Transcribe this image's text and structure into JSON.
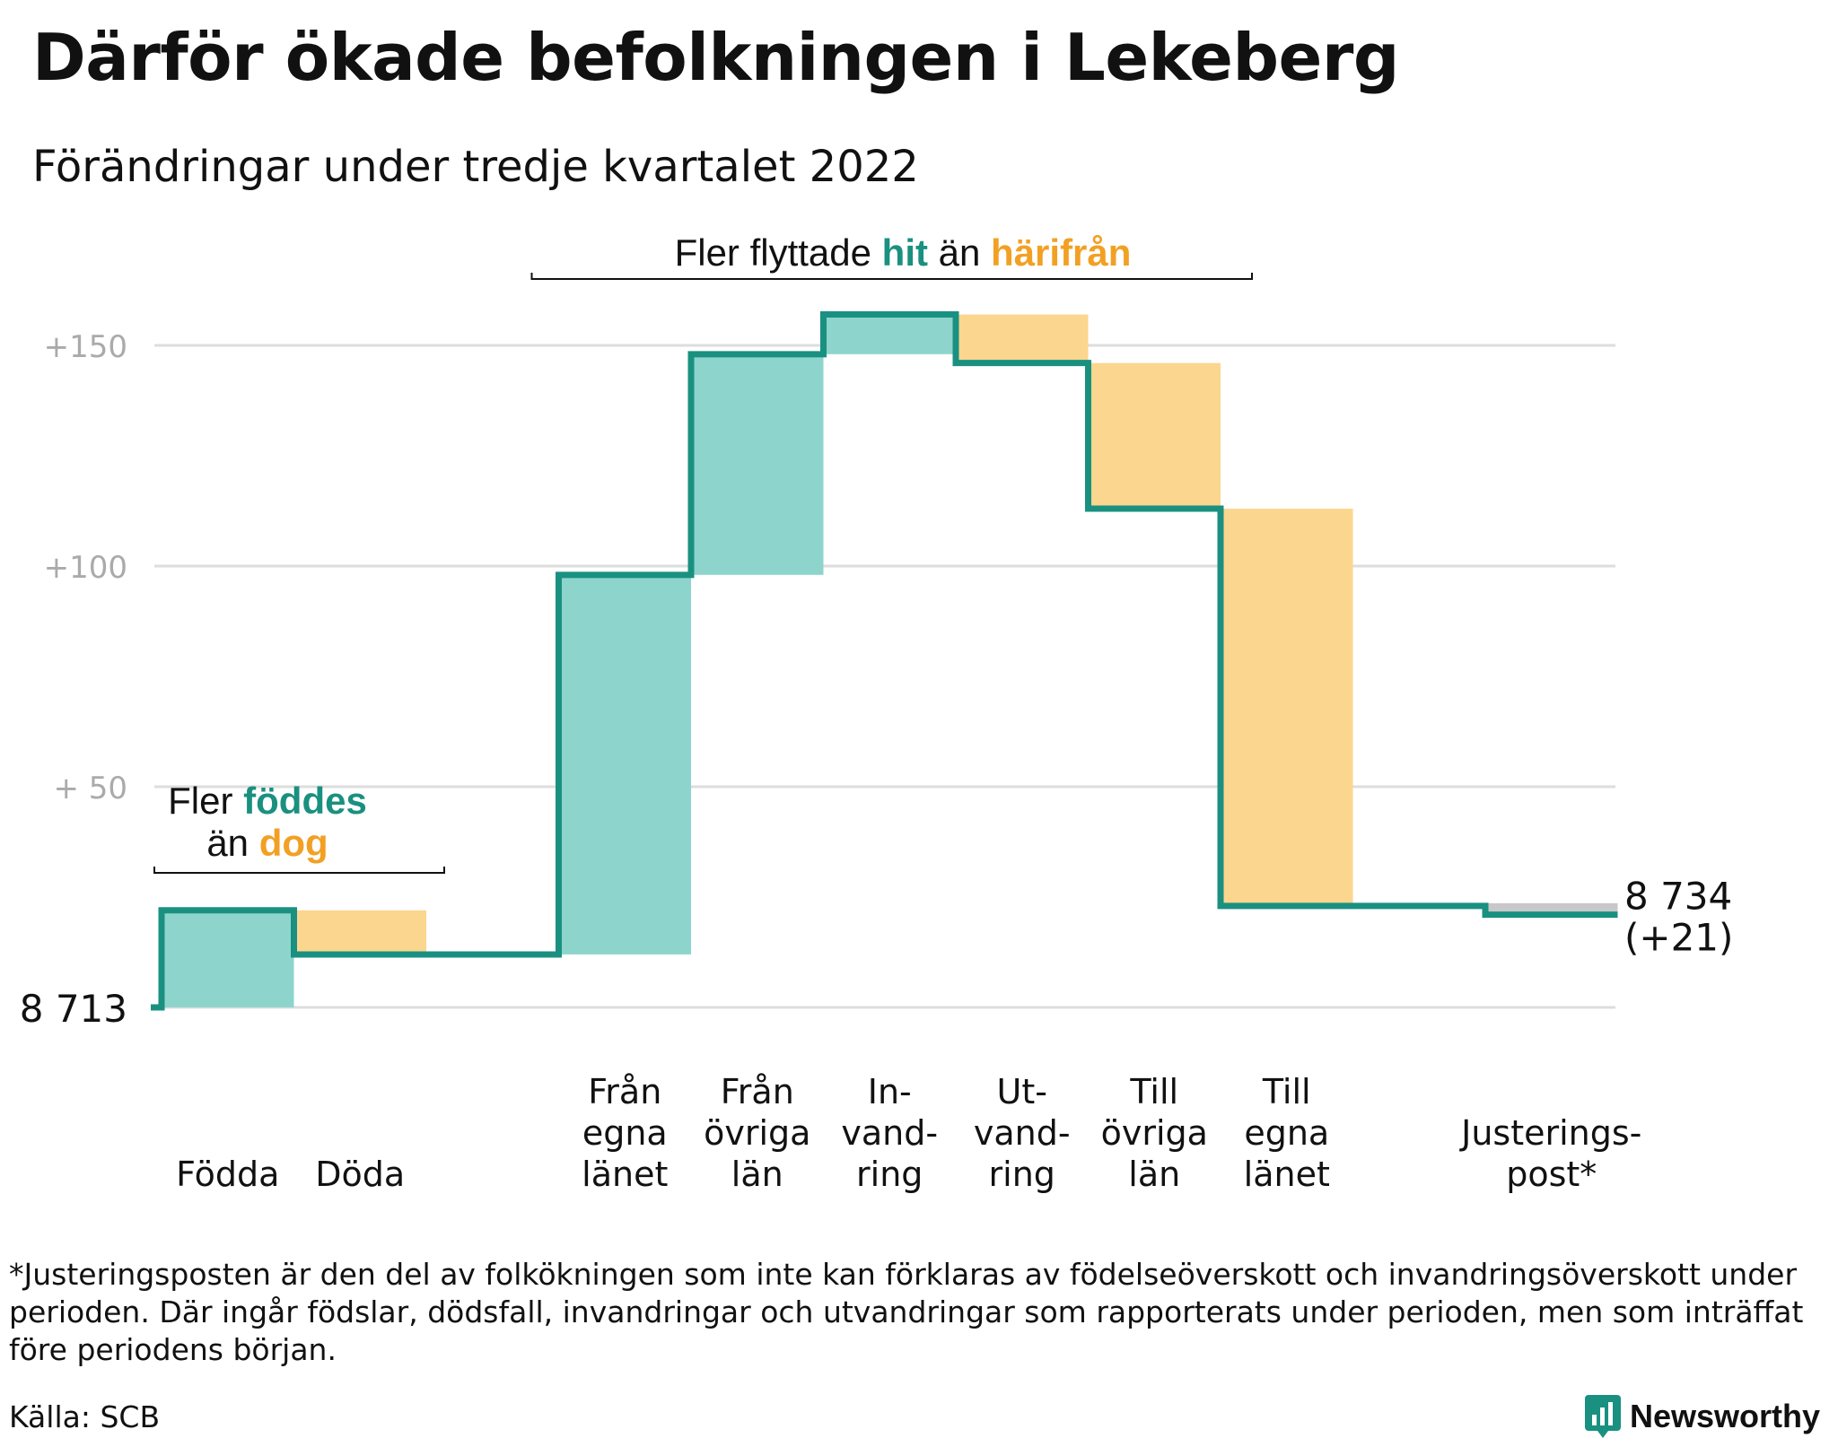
{
  "title": "Därför ökade befolkningen i Lekeberg",
  "subtitle": "Förändringar under tredje kvartalet 2022",
  "chart_data": {
    "type": "waterfall",
    "baseline": 8713,
    "baseline_label": "8 713",
    "final_label_line1": "8 734",
    "final_label_line2": "(+21)",
    "y_ticks": [
      {
        "value": 50,
        "label": "+ 50"
      },
      {
        "value": 100,
        "label": "+100"
      },
      {
        "value": 150,
        "label": "+150"
      }
    ],
    "ylim": [
      0,
      160
    ],
    "steps": [
      {
        "category": "Födda",
        "lines": [
          "Födda"
        ],
        "start": 0,
        "end": 22,
        "kind": "in"
      },
      {
        "category": "Döda",
        "lines": [
          "Döda"
        ],
        "start": 22,
        "end": 12,
        "kind": "out"
      },
      {
        "category": "",
        "lines": [],
        "start": 12,
        "end": 12,
        "kind": "gap"
      },
      {
        "category": "Från egna länet",
        "lines": [
          "Från",
          "egna",
          "länet"
        ],
        "start": 12,
        "end": 98,
        "kind": "in"
      },
      {
        "category": "Från övriga län",
        "lines": [
          "Från",
          "övriga",
          "län"
        ],
        "start": 98,
        "end": 148,
        "kind": "in"
      },
      {
        "category": "In-vand-ring",
        "lines": [
          "In-",
          "vand-",
          "ring"
        ],
        "start": 148,
        "end": 157,
        "kind": "in"
      },
      {
        "category": "Ut-vand-ring",
        "lines": [
          "Ut-",
          "vand-",
          "ring"
        ],
        "start": 157,
        "end": 146,
        "kind": "out"
      },
      {
        "category": "Till övriga län",
        "lines": [
          "Till",
          "övriga",
          "län"
        ],
        "start": 146,
        "end": 113,
        "kind": "out"
      },
      {
        "category": "Till egna länet",
        "lines": [
          "Till",
          "egna",
          "länet"
        ],
        "start": 113,
        "end": 23,
        "kind": "out"
      },
      {
        "category": "",
        "lines": [],
        "start": 23,
        "end": 23,
        "kind": "gap"
      },
      {
        "category": "Justerings-post*",
        "lines": [
          "Justerings-",
          "post*"
        ],
        "start": 23,
        "end": 21,
        "kind": "adjust"
      }
    ],
    "annotations": [
      {
        "id": "births",
        "parts": [
          {
            "text": "Fler ",
            "role": "plain"
          },
          {
            "text": "föddes",
            "role": "in"
          },
          {
            "text": "än ",
            "role": "plain",
            "newline": true
          },
          {
            "text": "dog",
            "role": "out"
          }
        ]
      },
      {
        "id": "moves",
        "parts": [
          {
            "text": "Fler flyttade ",
            "role": "plain"
          },
          {
            "text": "hit",
            "role": "in"
          },
          {
            "text": " än ",
            "role": "plain"
          },
          {
            "text": "härifrån",
            "role": "out"
          }
        ]
      }
    ]
  },
  "footnote": "*Justeringsposten är den del av folkökningen som inte kan förklaras av födelseöverskott och invandringsöverskott under perioden. Där ingår födslar, dödsfall, invandringar och utvandringar som rapporterats under perioden, men som inträffat före periodens början.",
  "source": "Källa: SCB",
  "brand": "Newsworthy",
  "colors": {
    "line": "#1a9080",
    "in_fill": "#8dd5cc",
    "out_fill": "#fbd68e",
    "adjust_fill": "#c8c8c8",
    "in_text": "#1a9080",
    "out_text": "#f2a024",
    "grid": "#dddddd",
    "tick_text": "#aaaaaa",
    "brand": "#1a9080"
  }
}
